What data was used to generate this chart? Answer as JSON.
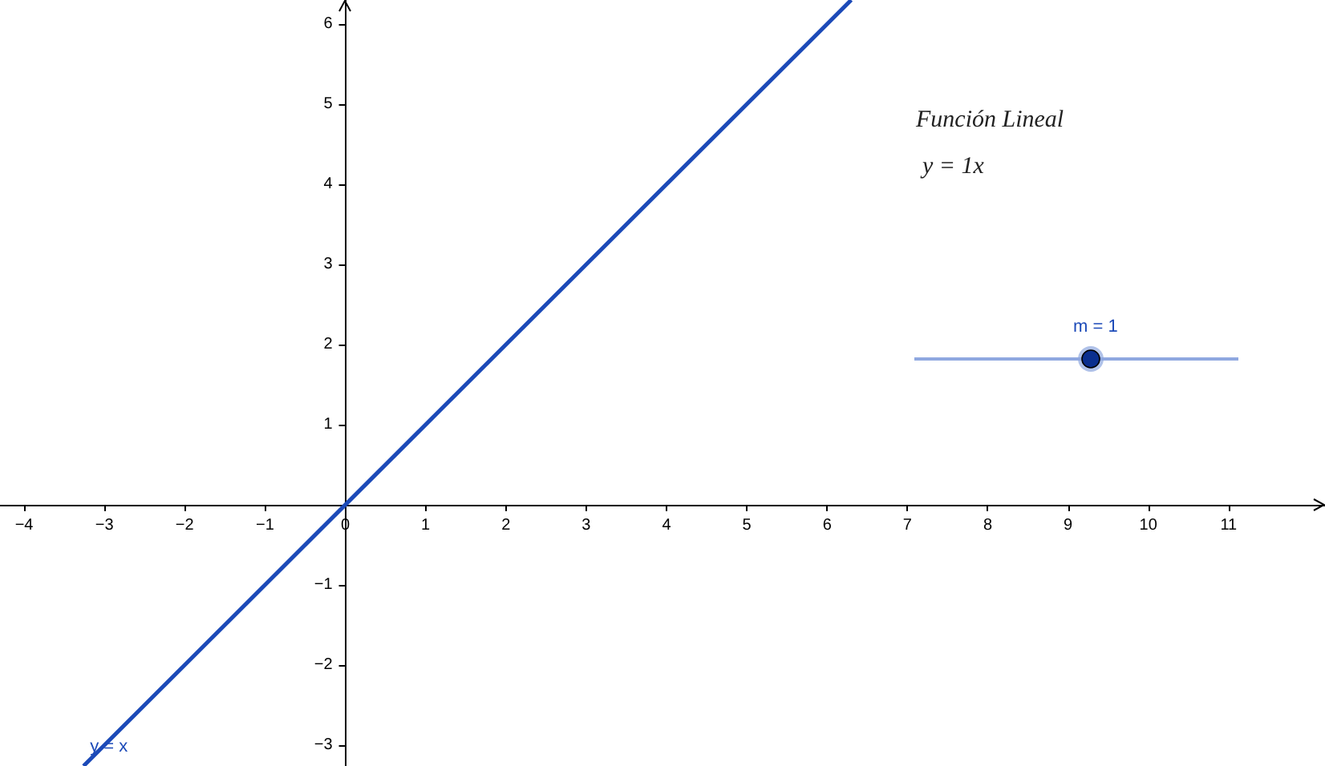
{
  "chart_data": {
    "type": "line",
    "x": [
      6.3,
      -3.26
    ],
    "series": [
      {
        "name": "y = x",
        "color": "#1c4ab8",
        "values": [
          6.3,
          -3.26
        ]
      }
    ],
    "xlim": [
      -4.3,
      12.2
    ],
    "ylim": [
      -3.26,
      6.3
    ],
    "xticks": [
      {
        "value": -4,
        "label": "−4"
      },
      {
        "value": -3,
        "label": "−3"
      },
      {
        "value": -2,
        "label": "−2"
      },
      {
        "value": -1,
        "label": "−1"
      },
      0,
      1,
      2,
      3,
      4,
      5,
      6,
      7,
      8,
      9,
      10,
      11
    ],
    "yticks": [
      {
        "value": -3,
        "label": "−3"
      },
      {
        "value": -2,
        "label": "−2"
      },
      {
        "value": -1,
        "label": "−1"
      },
      1,
      2,
      3,
      4,
      5,
      6
    ],
    "annotations": [
      "Función Lineal",
      "y = 1x",
      "m = 1"
    ],
    "grid": false,
    "legend": false,
    "marker": "none",
    "line_style": "solid"
  }
}
